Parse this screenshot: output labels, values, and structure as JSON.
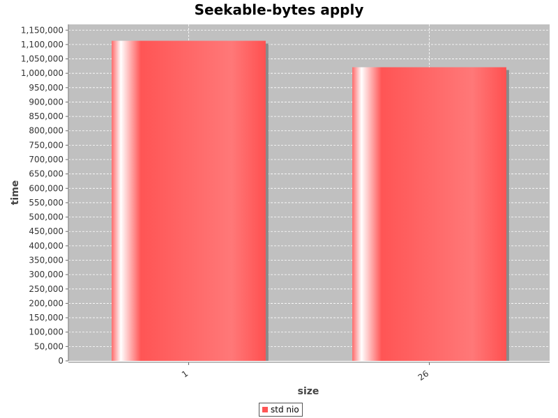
{
  "chart_data": {
    "type": "bar",
    "title": "Seekable-bytes apply",
    "xlabel": "size",
    "ylabel": "time",
    "categories": [
      "1",
      "26"
    ],
    "series": [
      {
        "name": "std nio",
        "values": [
          1113000,
          1021000
        ],
        "color": "#ff5555"
      }
    ],
    "ylim": [
      0,
      1170000
    ],
    "ytick_step": 50000,
    "grid": true,
    "legend_position": "bottom",
    "plot_background": "#c0c0c0"
  }
}
